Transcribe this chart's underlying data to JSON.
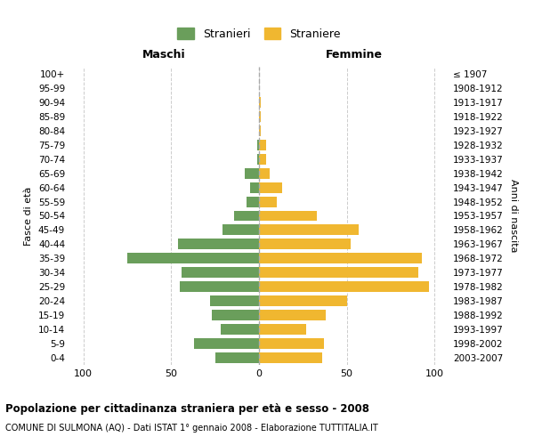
{
  "age_groups": [
    "0-4",
    "5-9",
    "10-14",
    "15-19",
    "20-24",
    "25-29",
    "30-34",
    "35-39",
    "40-44",
    "45-49",
    "50-54",
    "55-59",
    "60-64",
    "65-69",
    "70-74",
    "75-79",
    "80-84",
    "85-89",
    "90-94",
    "95-99",
    "100+"
  ],
  "birth_years": [
    "2003-2007",
    "1998-2002",
    "1993-1997",
    "1988-1992",
    "1983-1987",
    "1978-1982",
    "1973-1977",
    "1968-1972",
    "1963-1967",
    "1958-1962",
    "1953-1957",
    "1948-1952",
    "1943-1947",
    "1938-1942",
    "1933-1937",
    "1928-1932",
    "1923-1927",
    "1918-1922",
    "1913-1917",
    "1908-1912",
    "≤ 1907"
  ],
  "males": [
    25,
    37,
    22,
    27,
    28,
    45,
    44,
    75,
    46,
    21,
    14,
    7,
    5,
    8,
    1,
    1,
    0,
    0,
    0,
    0,
    0
  ],
  "females": [
    36,
    37,
    27,
    38,
    50,
    97,
    91,
    93,
    52,
    57,
    33,
    10,
    13,
    6,
    4,
    4,
    1,
    1,
    1,
    0,
    0
  ],
  "male_color": "#6a9e5b",
  "female_color": "#f0b730",
  "center_line_color": "#aaaaaa",
  "grid_color": "#cccccc",
  "background_color": "#ffffff",
  "title": "Popolazione per cittadinanza straniera per età e sesso - 2008",
  "subtitle": "COMUNE DI SULMONA (AQ) - Dati ISTAT 1° gennaio 2008 - Elaborazione TUTTITALIA.IT",
  "xlabel_left": "Maschi",
  "xlabel_right": "Femmine",
  "ylabel_left": "Fasce di età",
  "ylabel_right": "Anni di nascita",
  "legend_males": "Stranieri",
  "legend_females": "Straniere",
  "xlim": 108,
  "bar_height": 0.75
}
